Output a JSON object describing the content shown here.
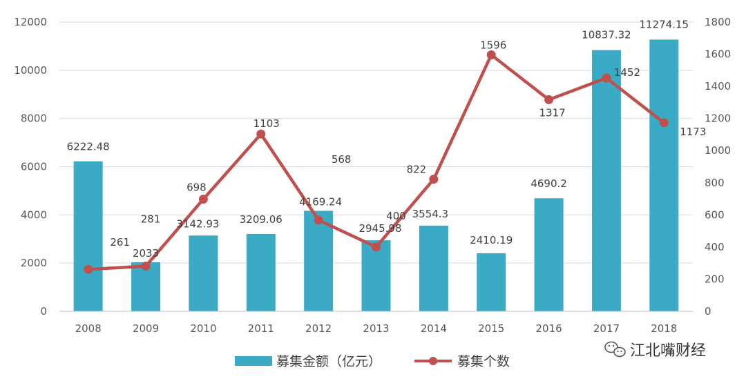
{
  "chart_data": {
    "type": "bar+line",
    "categories": [
      "2008",
      "2009",
      "2010",
      "2011",
      "2012",
      "2013",
      "2014",
      "2015",
      "2016",
      "2017",
      "2018"
    ],
    "series": [
      {
        "name": "募集金额（亿元）",
        "type": "bar",
        "axis": "left",
        "values": [
          6222.48,
          2033,
          3142.93,
          3209.06,
          4169.24,
          2945.98,
          3554.3,
          2410.19,
          4690.2,
          10837.32,
          11274.15
        ],
        "labels": [
          "6222.48",
          "2033",
          "3142.93",
          "3209.06",
          "4169.24",
          "2945.98",
          "3554.3",
          "2410.19",
          "4690.2",
          "10837.32",
          "11274.15"
        ]
      },
      {
        "name": "募集个数",
        "type": "line",
        "axis": "right",
        "values": [
          261,
          281,
          698,
          1103,
          568,
          400,
          822,
          1596,
          1317,
          1452,
          1173
        ],
        "labels": [
          "261",
          "281",
          "698",
          "1103",
          "568",
          "400",
          "822",
          "1596",
          "1317",
          "1452",
          "1173"
        ]
      }
    ],
    "y_left": {
      "min": 0,
      "max": 12000,
      "ticks": [
        "0",
        "2000",
        "4000",
        "6000",
        "8000",
        "10000",
        "12000"
      ]
    },
    "y_right": {
      "min": 0,
      "max": 1800,
      "ticks": [
        "0",
        "200",
        "400",
        "600",
        "800",
        "1000",
        "1200",
        "1400",
        "1600",
        "1800"
      ]
    },
    "legend_position": "bottom",
    "colors": {
      "bar": "#3aaac5",
      "line": "#c0504d",
      "grid": "#d9d9d9"
    }
  },
  "watermark": {
    "text": "江北嘴财经"
  }
}
